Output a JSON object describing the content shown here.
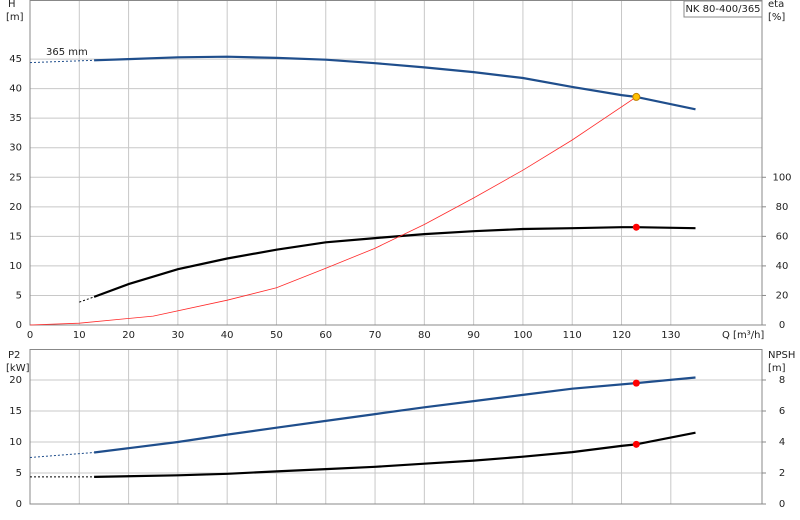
{
  "chart_data": [
    {
      "type": "line",
      "title": "NK 80-400/365",
      "ylabel": "H",
      "yunit": "[m]",
      "y2label": "eta",
      "y2unit": "[%]",
      "xlabel": "Q [m³/h]",
      "annotation": "365 mm",
      "xlim": [
        0,
        148.5
      ],
      "xticks": [
        0,
        10,
        20,
        30,
        40,
        50,
        60,
        70,
        80,
        90,
        100,
        110,
        120,
        130
      ],
      "ylim": [
        0,
        55
      ],
      "yticks": [
        0,
        5,
        10,
        15,
        20,
        25,
        30,
        35,
        40,
        45
      ],
      "y2lim": [
        0,
        220
      ],
      "y2ticks": [
        0,
        20,
        40,
        60,
        80,
        100
      ],
      "grid": true,
      "show_xtick_labels": true,
      "series": [
        {
          "style": "dotted",
          "color": "#1f4e8c",
          "x": [
            0,
            13
          ],
          "values": [
            44.4,
            44.8
          ]
        },
        {
          "style": "solid",
          "color": "#1f4e8c",
          "x": [
            13,
            20,
            30,
            40,
            50,
            60,
            70,
            80,
            90,
            100,
            110,
            120,
            123,
            135
          ],
          "values": [
            44.8,
            45.0,
            45.3,
            45.4,
            45.2,
            44.9,
            44.3,
            43.6,
            42.8,
            41.8,
            40.3,
            38.9,
            38.6,
            36.5
          ]
        },
        {
          "style": "dotted",
          "color": "#000000",
          "axis": "y2",
          "x": [
            10,
            13
          ],
          "values": [
            15.5,
            19
          ]
        },
        {
          "style": "solid",
          "color": "#000000",
          "axis": "y2",
          "x": [
            13,
            20,
            30,
            40,
            50,
            60,
            70,
            80,
            90,
            100,
            110,
            120,
            123,
            135
          ],
          "values": [
            19,
            27.7,
            37.8,
            45,
            51,
            56,
            58.8,
            61.5,
            63.5,
            65,
            65.5,
            66.2,
            66.2,
            65.5
          ]
        },
        {
          "style": "thin",
          "color": "#ff2a2a",
          "x": [
            0,
            10,
            25,
            40,
            50,
            60,
            70,
            80,
            90,
            100,
            110,
            123
          ],
          "values": [
            0,
            0.3,
            1.5,
            4.2,
            6.3,
            9.6,
            13,
            17,
            21.5,
            26.2,
            31.3,
            38.6
          ]
        }
      ],
      "points": [
        {
          "x": 123,
          "y": 38.6,
          "color": "#ffc000"
        },
        {
          "x": 123,
          "y": 66.2,
          "axis": "y2",
          "color": "#ff0000"
        }
      ]
    },
    {
      "type": "line",
      "ylabel": "P2",
      "yunit": "[kW]",
      "y2label": "NPSH",
      "y2unit": "[m]",
      "xlim": [
        0,
        148.5
      ],
      "xticks": [
        0,
        10,
        20,
        30,
        40,
        50,
        60,
        70,
        80,
        90,
        100,
        110,
        120,
        130
      ],
      "ylim": [
        0,
        25
      ],
      "yticks": [
        0,
        5,
        10,
        15,
        20
      ],
      "y2lim": [
        0,
        10
      ],
      "y2ticks": [
        0,
        2,
        4,
        6,
        8
      ],
      "grid": true,
      "show_xtick_labels": false,
      "series": [
        {
          "style": "dotted",
          "color": "#1f4e8c",
          "x": [
            0,
            13
          ],
          "values": [
            7.5,
            8.3
          ]
        },
        {
          "style": "solid",
          "color": "#1f4e8c",
          "x": [
            13,
            20,
            30,
            40,
            50,
            60,
            70,
            80,
            90,
            100,
            110,
            123,
            135
          ],
          "values": [
            8.3,
            9.0,
            10.0,
            11.2,
            12.3,
            13.4,
            14.5,
            15.6,
            16.6,
            17.6,
            18.6,
            19.5,
            20.4
          ]
        },
        {
          "style": "dotted",
          "color": "#000000",
          "axis": "y2",
          "x": [
            0,
            13
          ],
          "values": [
            1.75,
            1.75
          ]
        },
        {
          "style": "solid",
          "color": "#000000",
          "axis": "y2",
          "x": [
            13,
            30,
            40,
            50,
            60,
            70,
            80,
            90,
            100,
            110,
            120,
            123,
            135
          ],
          "values": [
            1.75,
            1.85,
            1.95,
            2.1,
            2.25,
            2.4,
            2.6,
            2.8,
            3.05,
            3.35,
            3.75,
            3.85,
            4.6
          ]
        }
      ],
      "points": [
        {
          "x": 123,
          "y": 19.5,
          "color": "#ff0000"
        },
        {
          "x": 123,
          "y": 3.85,
          "axis": "y2",
          "color": "#ff0000"
        }
      ]
    }
  ]
}
